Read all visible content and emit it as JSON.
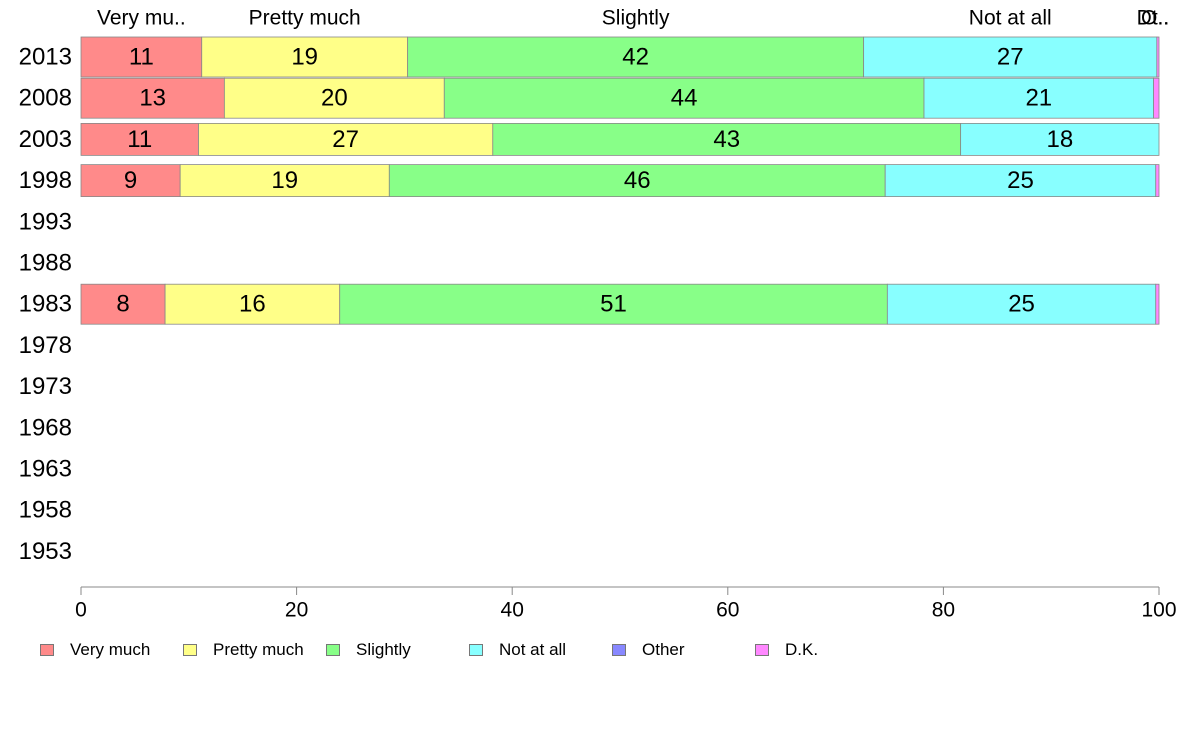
{
  "chart_data": {
    "type": "bar",
    "orientation": "horizontal",
    "stacked": true,
    "categories": [
      "2013",
      "2008",
      "2003",
      "1998",
      "1993",
      "1988",
      "1983",
      "1978",
      "1973",
      "1968",
      "1963",
      "1958",
      "1953"
    ],
    "series": [
      {
        "name": "Very much",
        "color": "#ff8a8a",
        "values": [
          11.2,
          13.3,
          10.9,
          9.2,
          null,
          null,
          7.8,
          null,
          null,
          null,
          null,
          null,
          null
        ],
        "labels": [
          "11",
          "13",
          "11",
          "9",
          "",
          "",
          "8",
          "",
          "",
          "",
          "",
          "",
          ""
        ]
      },
      {
        "name": "Pretty much",
        "color": "#ffff88",
        "values": [
          19.1,
          20.4,
          27.3,
          19.4,
          null,
          null,
          16.2,
          null,
          null,
          null,
          null,
          null,
          null
        ],
        "labels": [
          "19",
          "20",
          "27",
          "19",
          "",
          "",
          "16",
          "",
          "",
          "",
          "",
          "",
          ""
        ]
      },
      {
        "name": "Slightly",
        "color": "#88ff88",
        "values": [
          42.3,
          44.5,
          43.4,
          46.0,
          null,
          null,
          50.8,
          null,
          null,
          null,
          null,
          null,
          null
        ],
        "labels": [
          "42",
          "44",
          "43",
          "46",
          "",
          "",
          "51",
          "",
          "",
          "",
          "",
          "",
          ""
        ]
      },
      {
        "name": "Not at all",
        "color": "#88ffff",
        "values": [
          27.2,
          21.3,
          18.4,
          25.1,
          null,
          null,
          24.9,
          null,
          null,
          null,
          null,
          null,
          null
        ],
        "labels": [
          "27",
          "21",
          "18",
          "25",
          "",
          "",
          "25",
          "",
          "",
          "",
          "",
          "",
          ""
        ]
      },
      {
        "name": "Other",
        "color": "#8888ff",
        "values": [
          0.0,
          0.0,
          0.0,
          0.0,
          null,
          null,
          0.0,
          null,
          null,
          null,
          null,
          null,
          null
        ],
        "labels": [
          "",
          "",
          "",
          "",
          "",
          "",
          "",
          "",
          "",
          "",
          "",
          "",
          ""
        ]
      },
      {
        "name": "D.K.",
        "color": "#ff88ff",
        "values": [
          0.2,
          0.5,
          0.0,
          0.3,
          null,
          null,
          0.3,
          null,
          null,
          null,
          null,
          null,
          null
        ],
        "labels": [
          "",
          "",
          "",
          "",
          "",
          "",
          "",
          "",
          "",
          "",
          "",
          "",
          ""
        ]
      }
    ],
    "top_labels": [
      "Very mu..",
      "Pretty much",
      "Slightly",
      "Not at all",
      "O..",
      "Dt.."
    ],
    "xlim": [
      0,
      100
    ],
    "xticks": [
      0,
      20,
      40,
      60,
      80,
      100
    ],
    "legend_position": "bottom",
    "grid": false
  },
  "legend": {
    "items": [
      {
        "label": "Very much",
        "color": "#ff8a8a"
      },
      {
        "label": "Pretty much",
        "color": "#ffff88"
      },
      {
        "label": "Slightly",
        "color": "#88ff88"
      },
      {
        "label": "Not at all",
        "color": "#88ffff"
      },
      {
        "label": "Other",
        "color": "#8888ff"
      },
      {
        "label": "D.K.",
        "color": "#ff88ff"
      }
    ]
  }
}
